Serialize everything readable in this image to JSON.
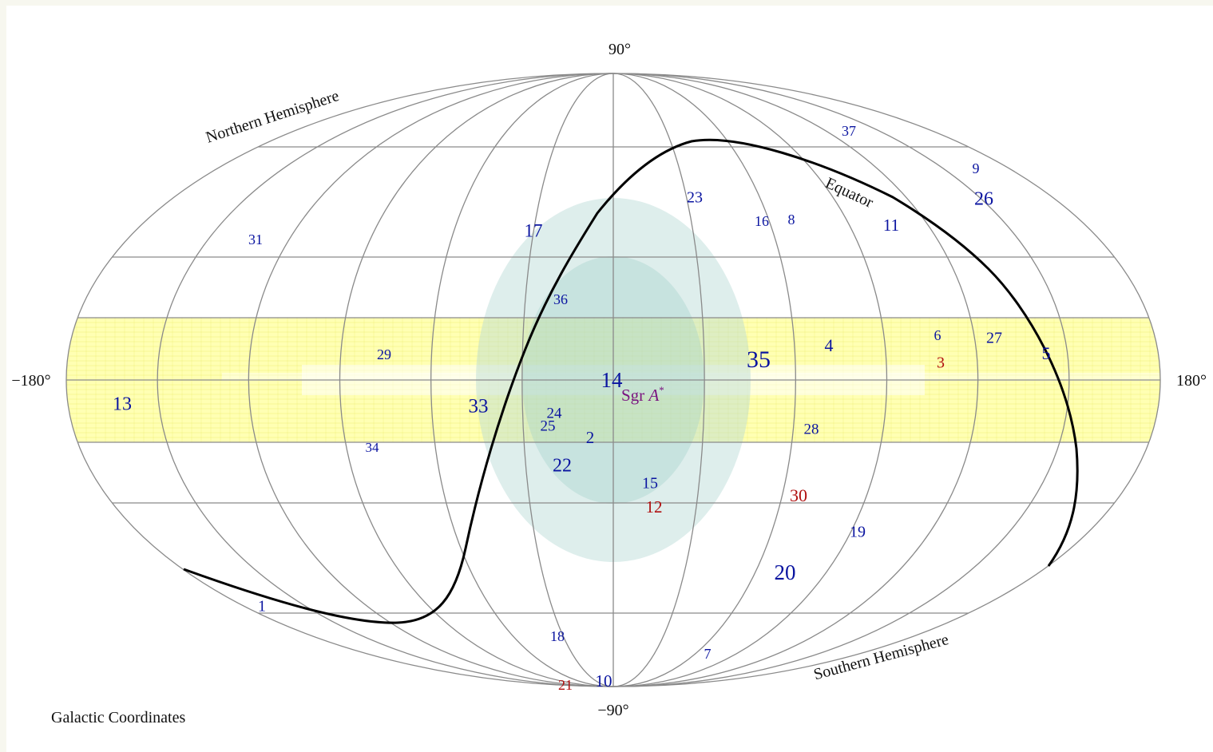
{
  "title": "Galactic Coordinates",
  "axis_labels": {
    "north_pole": "90°",
    "south_pole": "−90°",
    "west_edge": "−180°",
    "east_edge": "180°"
  },
  "annotations": {
    "northern": "Northern Hemisphere",
    "southern": "Southern Hemisphere",
    "equator": "Equator",
    "galactic_center_name": "Sgr ",
    "galactic_center_italic": "A",
    "galactic_center_sup": "*"
  },
  "colors": {
    "grid": "#8a8a8a",
    "band": "#ffff99",
    "bulge": "#b6d9d4",
    "equator_line": "#000000",
    "marker_blue": "#0a14a0",
    "marker_red": "#b01010",
    "center_label": "#7a1580"
  },
  "markers": [
    {
      "id": "1",
      "color": "blue"
    },
    {
      "id": "2",
      "color": "blue"
    },
    {
      "id": "3",
      "color": "red"
    },
    {
      "id": "4",
      "color": "blue"
    },
    {
      "id": "5",
      "color": "blue"
    },
    {
      "id": "6",
      "color": "blue"
    },
    {
      "id": "7",
      "color": "blue"
    },
    {
      "id": "8",
      "color": "blue"
    },
    {
      "id": "9",
      "color": "blue"
    },
    {
      "id": "10",
      "color": "blue"
    },
    {
      "id": "11",
      "color": "blue"
    },
    {
      "id": "12",
      "color": "red"
    },
    {
      "id": "13",
      "color": "blue"
    },
    {
      "id": "14",
      "color": "blue"
    },
    {
      "id": "15",
      "color": "blue"
    },
    {
      "id": "16",
      "color": "blue"
    },
    {
      "id": "17",
      "color": "blue"
    },
    {
      "id": "18",
      "color": "blue"
    },
    {
      "id": "19",
      "color": "blue"
    },
    {
      "id": "20",
      "color": "blue"
    },
    {
      "id": "21",
      "color": "red"
    },
    {
      "id": "22",
      "color": "blue"
    },
    {
      "id": "23",
      "color": "blue"
    },
    {
      "id": "24",
      "color": "blue"
    },
    {
      "id": "25",
      "color": "blue"
    },
    {
      "id": "26",
      "color": "blue"
    },
    {
      "id": "27",
      "color": "blue"
    },
    {
      "id": "28",
      "color": "blue"
    },
    {
      "id": "29",
      "color": "blue"
    },
    {
      "id": "30",
      "color": "red"
    },
    {
      "id": "31",
      "color": "blue"
    },
    {
      "id": "33",
      "color": "blue"
    },
    {
      "id": "34",
      "color": "blue"
    },
    {
      "id": "35",
      "color": "blue"
    },
    {
      "id": "36",
      "color": "blue"
    },
    {
      "id": "37",
      "color": "blue"
    }
  ]
}
